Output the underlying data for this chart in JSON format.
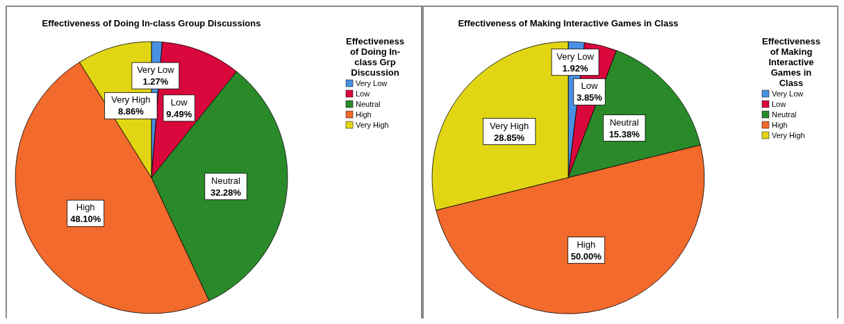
{
  "chart_data": [
    {
      "type": "pie",
      "title": "Effectiveness of Doing In-class Group Discussions",
      "legend_title": "Effectiveness of Doing In-class Grp Discussion",
      "legend": "right",
      "categories": [
        "Very Low",
        "Low",
        "Neutral",
        "High",
        "Very High"
      ],
      "values": [
        1.27,
        9.49,
        32.28,
        48.1,
        8.86
      ],
      "colors": [
        "#4a90e2",
        "#d9073b",
        "#2a8a2a",
        "#f26a2c",
        "#e2d614"
      ],
      "value_labels": [
        "1.27%",
        "9.49%",
        "32.28%",
        "48.10%",
        "8.86%"
      ]
    },
    {
      "type": "pie",
      "title": "Effectiveness of Making Interactive Games in Class",
      "legend_title": "Effectiveness of Making Interactive Games in Class",
      "legend": "right",
      "categories": [
        "Very Low",
        "Low",
        "Neutral",
        "High",
        "Very High"
      ],
      "values": [
        1.92,
        3.85,
        15.38,
        50.0,
        28.85
      ],
      "colors": [
        "#4a90e2",
        "#d9073b",
        "#2a8a2a",
        "#f26a2c",
        "#e2d614"
      ],
      "value_labels": [
        "1.92%",
        "3.85%",
        "15.38%",
        "50.00%",
        "28.85%"
      ]
    }
  ]
}
